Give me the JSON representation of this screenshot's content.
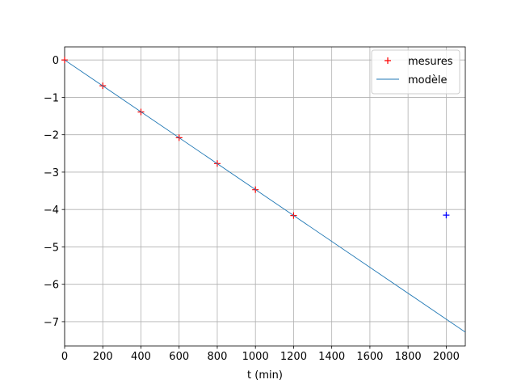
{
  "chart_data": {
    "type": "line",
    "xlabel": "t (min)",
    "xlim": [
      0,
      2100
    ],
    "ylim": [
      -7.65,
      0.35
    ],
    "xticks": [
      0,
      200,
      400,
      600,
      800,
      1000,
      1200,
      1400,
      1600,
      1800,
      2000
    ],
    "yticks": [
      {
        "value": -7,
        "label": "−7"
      },
      {
        "value": -6,
        "label": "−6"
      },
      {
        "value": -5,
        "label": "−5"
      },
      {
        "value": -4,
        "label": "−4"
      },
      {
        "value": -3,
        "label": "−3"
      },
      {
        "value": -2,
        "label": "−2"
      },
      {
        "value": -1,
        "label": "−1"
      },
      0
    ],
    "grid": true,
    "legend": "upper right",
    "series": [
      {
        "name": "mesures",
        "color": "#ff0000",
        "style": "marker",
        "x": [
          0,
          200,
          400,
          600,
          800,
          1000,
          1200
        ],
        "values": [
          0,
          -0.69,
          -1.39,
          -2.08,
          -2.77,
          -3.47,
          -4.16
        ]
      },
      {
        "name": "modèle",
        "color": "#1f77b4",
        "style": "line",
        "x": [
          0,
          2100
        ],
        "values": [
          0,
          -7.28
        ]
      },
      {
        "color": "#0000ff",
        "style": "marker",
        "x": [
          2000
        ],
        "values": [
          -4.15
        ]
      }
    ]
  }
}
